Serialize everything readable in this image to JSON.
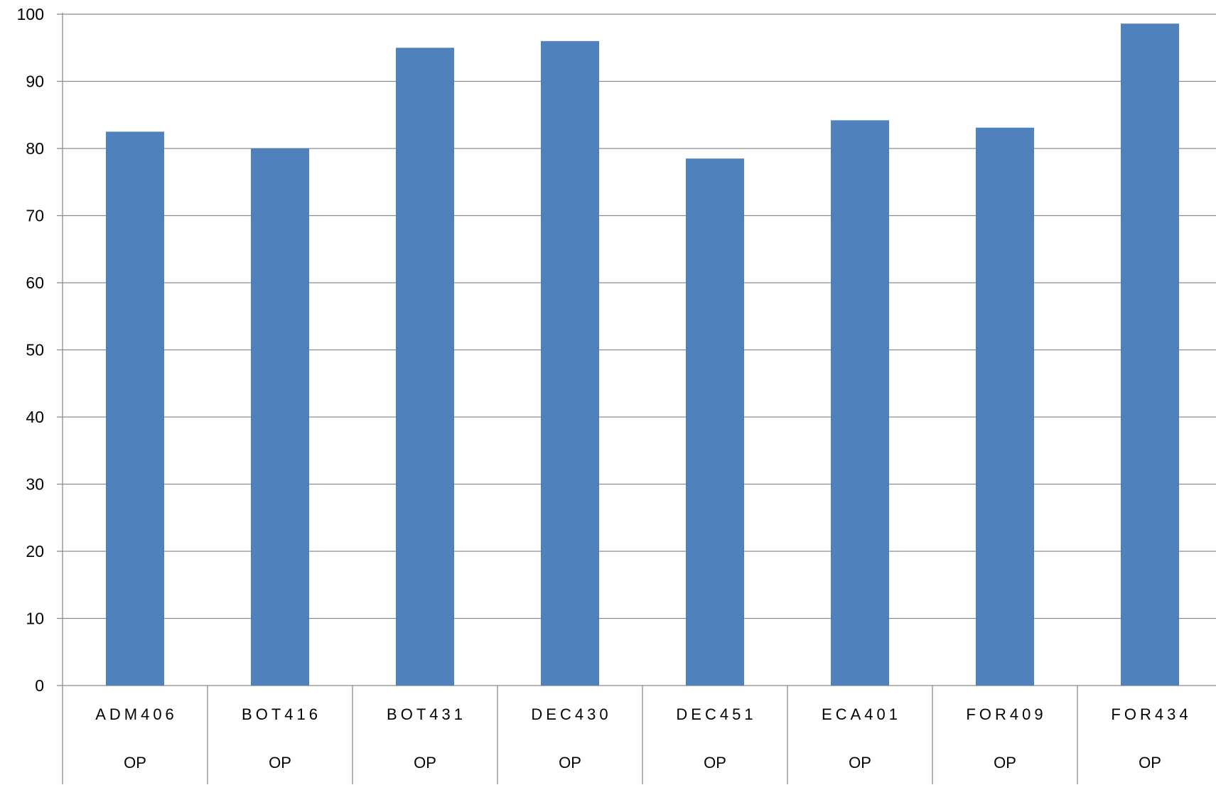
{
  "chart_data": {
    "type": "bar",
    "categories": [
      {
        "code": "ADM406",
        "group": "OP"
      },
      {
        "code": "BOT416",
        "group": "OP"
      },
      {
        "code": "BOT431",
        "group": "OP"
      },
      {
        "code": "DEC430",
        "group": "OP"
      },
      {
        "code": "DEC451",
        "group": "OP"
      },
      {
        "code": "ECA401",
        "group": "OP"
      },
      {
        "code": "FOR409",
        "group": "OP"
      },
      {
        "code": "FOR434",
        "group": "OP"
      }
    ],
    "values": [
      82.5,
      80.0,
      95.0,
      96.0,
      78.5,
      84.2,
      83.1,
      98.6
    ],
    "title": "",
    "xlabel": "",
    "ylabel": "",
    "ylim": [
      0,
      100
    ],
    "yticks": [
      0,
      10,
      20,
      30,
      40,
      50,
      60,
      70,
      80,
      90,
      100
    ],
    "grid": true,
    "legend": "none",
    "colors": {
      "bar": "#4f81bd",
      "grid": "#8c8c8c",
      "axis": "#8c8c8c"
    }
  }
}
